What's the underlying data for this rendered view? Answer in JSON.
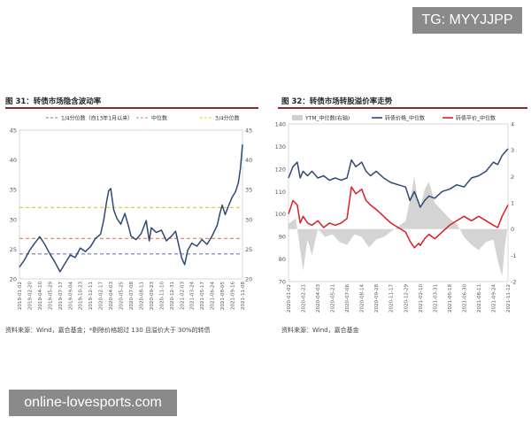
{
  "watermark_top": "TG: MYYJJPP",
  "watermark_bottom": "online-lovesports.com",
  "left": {
    "title": "图 31：转债市场隐含波动率",
    "source": "资料来源：Wind，嘉合基金；*剔除价格超过 130 且溢价大于 30%的转债"
  },
  "right": {
    "title": "图 32：转债市场转股溢价率走势",
    "source": "资料来源：Wind，嘉合基金"
  },
  "colors": {
    "navy": "#2e4a73",
    "red": "#d7202c",
    "gold": "#e5c43a",
    "gray": "#cfcfcf",
    "orange": "#e57c5a",
    "dash": "#6b7fa8"
  },
  "chart_data": [
    {
      "type": "line",
      "ylim": [
        20,
        45
      ],
      "yticks": [
        20,
        25,
        30,
        35,
        40,
        45
      ],
      "xlabels": [
        "2019-01-02",
        "2019-02-20",
        "2019-04-10",
        "2019-05-29",
        "2019-07-17",
        "2019-09-04",
        "2019-10-23",
        "2019-12-11",
        "2020-02-17",
        "2020-04-03",
        "2020-05-25",
        "2020-07-08",
        "2020-08-11",
        "2020-09-23",
        "2020-11-10",
        "2020-12-31",
        "2021-02-03",
        "2021-03-24",
        "2021-05-17",
        "2021-06-24",
        "2021-08-05",
        "2021-09-16",
        "2021-11-08"
      ],
      "legend": [
        {
          "name": "1/4分位数（自13年1月以来）",
          "style": "dashed",
          "color": "#6b7fa8"
        },
        {
          "name": "中位数",
          "style": "dashed",
          "color": "#e57c5a"
        },
        {
          "name": "3/4分位数",
          "style": "dashed",
          "color": "#e5c43a"
        }
      ],
      "ref_lines": [
        {
          "value": 24.2,
          "color": "#6b7fa8"
        },
        {
          "value": 26.8,
          "color": "#e57c5a"
        },
        {
          "value": 32.0,
          "color": "#e5c43a"
        }
      ],
      "series": [
        {
          "color": "#2e4a73",
          "points": [
            [
              0,
              22.0
            ],
            [
              0.5,
              23.2
            ],
            [
              1,
              24.8
            ],
            [
              1.5,
              26.0
            ],
            [
              2,
              27.1
            ],
            [
              2.5,
              25.8
            ],
            [
              3,
              24.2
            ],
            [
              3.5,
              22.8
            ],
            [
              4,
              21.2
            ],
            [
              4.5,
              22.6
            ],
            [
              5,
              24.0
            ],
            [
              5.5,
              23.6
            ],
            [
              6,
              25.2
            ],
            [
              6.5,
              24.6
            ],
            [
              7,
              25.4
            ],
            [
              7.5,
              26.8
            ],
            [
              8,
              27.5
            ],
            [
              8.3,
              29.8
            ],
            [
              8.6,
              33.0
            ],
            [
              8.8,
              34.8
            ],
            [
              9,
              35.2
            ],
            [
              9.3,
              31.6
            ],
            [
              9.6,
              30.2
            ],
            [
              10,
              29.2
            ],
            [
              10.4,
              31.0
            ],
            [
              10.8,
              28.6
            ],
            [
              11,
              27.2
            ],
            [
              11.5,
              26.6
            ],
            [
              12,
              27.6
            ],
            [
              12.5,
              29.8
            ],
            [
              12.8,
              26.4
            ],
            [
              13,
              28.6
            ],
            [
              13.5,
              27.8
            ],
            [
              14,
              28.2
            ],
            [
              14.5,
              26.4
            ],
            [
              15,
              27.2
            ],
            [
              15.4,
              28.0
            ],
            [
              15.8,
              25.0
            ],
            [
              16,
              23.5
            ],
            [
              16.3,
              22.4
            ],
            [
              16.6,
              24.8
            ],
            [
              17,
              26.0
            ],
            [
              17.5,
              25.5
            ],
            [
              18,
              26.6
            ],
            [
              18.5,
              25.8
            ],
            [
              19,
              27.2
            ],
            [
              19.5,
              29.0
            ],
            [
              19.8,
              31.2
            ],
            [
              20,
              32.4
            ],
            [
              20.3,
              30.8
            ],
            [
              20.6,
              32.2
            ],
            [
              21,
              33.8
            ],
            [
              21.3,
              34.6
            ],
            [
              21.6,
              36.2
            ],
            [
              21.8,
              38.6
            ],
            [
              22,
              42.6
            ]
          ]
        }
      ]
    },
    {
      "type": "line",
      "ylim_left": [
        70,
        140
      ],
      "yticks_left": [
        70,
        80,
        90,
        100,
        110,
        120,
        130,
        140
      ],
      "ylim_right": [
        -2,
        4
      ],
      "yticks_right": [
        -2,
        -1,
        0,
        1,
        2,
        3,
        4
      ],
      "xlabels": [
        "2020-01-02",
        "2020-02-21",
        "2020-04-03",
        "2020-05-21",
        "2020-07-06",
        "2020-08-14",
        "2020-09-28",
        "2020-11-17",
        "2020-12-29",
        "2021-02-10",
        "2021-03-31",
        "2021-05-18",
        "2021-06-30",
        "2021-08-11",
        "2021-09-24",
        "2021-11-12"
      ],
      "legend": [
        {
          "name": "YTM_中位数(右轴)",
          "style": "area",
          "color": "#cfcfcf"
        },
        {
          "name": "转债价格_中位数",
          "style": "line",
          "color": "#2e4a73"
        },
        {
          "name": "转债平价_中位数",
          "style": "line",
          "color": "#d7202c"
        }
      ],
      "series": [
        {
          "name": "YTM_中位数(右轴)",
          "axis": "right",
          "color": "#cfcfcf",
          "points": [
            [
              0,
              0.2
            ],
            [
              0.5,
              0.4
            ],
            [
              0.8,
              -0.8
            ],
            [
              1,
              -1.6
            ],
            [
              1.3,
              -0.4
            ],
            [
              1.6,
              -1.0
            ],
            [
              2,
              0.0
            ],
            [
              2.5,
              -0.3
            ],
            [
              3,
              -0.2
            ],
            [
              3.5,
              -0.5
            ],
            [
              4,
              -0.6
            ],
            [
              4.5,
              -0.2
            ],
            [
              5,
              -0.3
            ],
            [
              5.5,
              -0.7
            ],
            [
              6,
              -0.4
            ],
            [
              6.5,
              -0.3
            ],
            [
              7,
              -0.1
            ],
            [
              7.5,
              0.1
            ],
            [
              8,
              0.3
            ],
            [
              8.3,
              1.1
            ],
            [
              8.6,
              2.0
            ],
            [
              8.8,
              1.2
            ],
            [
              9,
              0.8
            ],
            [
              9.3,
              1.5
            ],
            [
              9.6,
              1.8
            ],
            [
              10,
              1.0
            ],
            [
              10.5,
              0.7
            ],
            [
              11,
              0.4
            ],
            [
              11.5,
              0.2
            ],
            [
              12,
              -0.3
            ],
            [
              12.5,
              -0.6
            ],
            [
              13,
              -0.8
            ],
            [
              13.5,
              -0.5
            ],
            [
              14,
              -0.4
            ],
            [
              14.3,
              -1.2
            ],
            [
              14.6,
              -1.8
            ],
            [
              14.8,
              -0.6
            ],
            [
              15,
              0.2
            ]
          ]
        },
        {
          "name": "转债价格_中位数",
          "axis": "left",
          "color": "#2e4a73",
          "points": [
            [
              0,
              116
            ],
            [
              0.3,
              121
            ],
            [
              0.6,
              123
            ],
            [
              0.8,
              116
            ],
            [
              1,
              119
            ],
            [
              1.3,
              117
            ],
            [
              1.6,
              119
            ],
            [
              2,
              116
            ],
            [
              2.4,
              117
            ],
            [
              2.8,
              115
            ],
            [
              3.2,
              116
            ],
            [
              3.6,
              115
            ],
            [
              4,
              116
            ],
            [
              4.3,
              124
            ],
            [
              4.6,
              121
            ],
            [
              5,
              123
            ],
            [
              5.3,
              119
            ],
            [
              5.6,
              117
            ],
            [
              6,
              119
            ],
            [
              6.5,
              116
            ],
            [
              7,
              114
            ],
            [
              7.5,
              113
            ],
            [
              8,
              112
            ],
            [
              8.3,
              106
            ],
            [
              8.6,
              110
            ],
            [
              8.9,
              105
            ],
            [
              9,
              103
            ],
            [
              9.3,
              106
            ],
            [
              9.6,
              108
            ],
            [
              10,
              107
            ],
            [
              10.5,
              110
            ],
            [
              11,
              111
            ],
            [
              11.5,
              113
            ],
            [
              12,
              112
            ],
            [
              12.5,
              116
            ],
            [
              13,
              117
            ],
            [
              13.5,
              119
            ],
            [
              14,
              123
            ],
            [
              14.3,
              122
            ],
            [
              14.6,
              126
            ],
            [
              15,
              129
            ]
          ]
        },
        {
          "name": "转债平价_中位数",
          "axis": "left",
          "color": "#d7202c",
          "points": [
            [
              0,
              100
            ],
            [
              0.3,
              106
            ],
            [
              0.6,
              104
            ],
            [
              0.8,
              96
            ],
            [
              1,
              99
            ],
            [
              1.3,
              96
            ],
            [
              1.6,
              95
            ],
            [
              2,
              97
            ],
            [
              2.4,
              94
            ],
            [
              2.8,
              96
            ],
            [
              3.2,
              95
            ],
            [
              3.6,
              96
            ],
            [
              4,
              98
            ],
            [
              4.3,
              112
            ],
            [
              4.6,
              109
            ],
            [
              5,
              111
            ],
            [
              5.3,
              106
            ],
            [
              5.6,
              104
            ],
            [
              6,
              102
            ],
            [
              6.5,
              99
            ],
            [
              7,
              96
            ],
            [
              7.5,
              94
            ],
            [
              8,
              92
            ],
            [
              8.3,
              88
            ],
            [
              8.6,
              85
            ],
            [
              8.9,
              87
            ],
            [
              9,
              86
            ],
            [
              9.3,
              89
            ],
            [
              9.6,
              91
            ],
            [
              10,
              89
            ],
            [
              10.5,
              92
            ],
            [
              11,
              95
            ],
            [
              11.5,
              97
            ],
            [
              12,
              99
            ],
            [
              12.5,
              97
            ],
            [
              13,
              99
            ],
            [
              13.5,
              97
            ],
            [
              14,
              95
            ],
            [
              14.3,
              94
            ],
            [
              14.6,
              99
            ],
            [
              15,
              104
            ]
          ]
        }
      ]
    }
  ]
}
